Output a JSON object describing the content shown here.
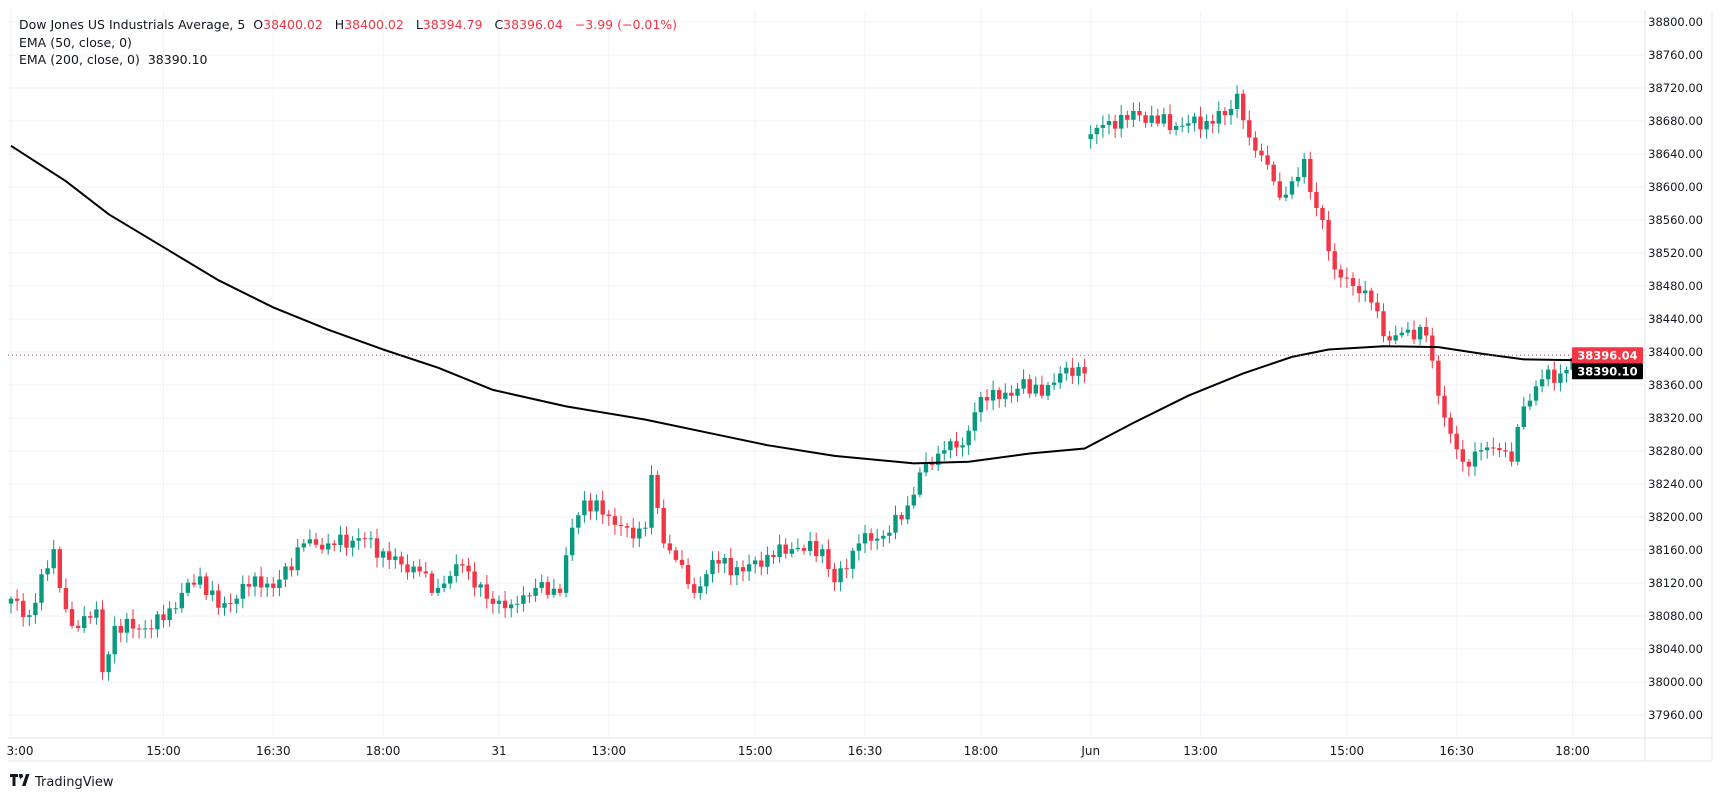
{
  "legend": {
    "symbol": "Dow Jones US Industrials Average, 5",
    "o_label": "O",
    "open": "38400.02",
    "h_label": "H",
    "high": "38400.02",
    "l_label": "L",
    "low": "38394.79",
    "c_label": "C",
    "close": "38396.04",
    "change": "−3.99 (−0.01%)",
    "ema50": "EMA (50, close, 0)",
    "ema200": "EMA (200, close, 0)",
    "ema200_value": "38390.10"
  },
  "brand": {
    "logo": "TV",
    "name": "TradingView"
  },
  "colors": {
    "up": "#089981",
    "down": "#f23645",
    "ema": "#000000",
    "grid": "#f0f3fa"
  },
  "chart_data": {
    "type": "candlestick",
    "title": "Dow Jones US Industrials Average, 5",
    "ylim": [
      37940,
      38820
    ],
    "yticks": [
      38800,
      38760,
      38720,
      38680,
      38640,
      38600,
      38560,
      38520,
      38480,
      38440,
      38400,
      38360,
      38320,
      38280,
      38240,
      38200,
      38160,
      38120,
      38080,
      38040,
      38000,
      37960
    ],
    "ytick_labels": [
      "38800.00",
      "38760.00",
      "38720.00",
      "38680.00",
      "38640.00",
      "38600.00",
      "38560.00",
      "38520.00",
      "38480.00",
      "38440.00",
      "38400.00",
      "38360.00",
      "38320.00",
      "38280.00",
      "38240.00",
      "38200.00",
      "38160.00",
      "38120.00",
      "38080.00",
      "38040.00",
      "38000.00",
      "37960.00"
    ],
    "xticks": [
      {
        "bar": 0,
        "label": "3:00"
      },
      {
        "bar": 25,
        "label": "15:00"
      },
      {
        "bar": 43,
        "label": "16:30"
      },
      {
        "bar": 61,
        "label": "18:00"
      },
      {
        "bar": 80,
        "label": "31"
      },
      {
        "bar": 98,
        "label": "13:00"
      },
      {
        "bar": 122,
        "label": "15:00"
      },
      {
        "bar": 140,
        "label": "16:30"
      },
      {
        "bar": 159,
        "label": "18:00"
      },
      {
        "bar": 177,
        "label": "Jun"
      },
      {
        "bar": 195,
        "label": "13:00"
      },
      {
        "bar": 219,
        "label": "15:00"
      },
      {
        "bar": 237,
        "label": "16:30"
      },
      {
        "bar": 256,
        "label": "18:00"
      }
    ],
    "n_bars": 258,
    "session_gap_bars": [
      177
    ],
    "close_waypoints": [
      [
        0,
        38101
      ],
      [
        3,
        38081
      ],
      [
        7,
        38161
      ],
      [
        8,
        38114
      ],
      [
        10,
        38068
      ],
      [
        14,
        38088
      ],
      [
        15,
        38012
      ],
      [
        17,
        38068
      ],
      [
        22,
        38065
      ],
      [
        25,
        38075
      ],
      [
        28,
        38108
      ],
      [
        31,
        38128
      ],
      [
        34,
        38090
      ],
      [
        37,
        38101
      ],
      [
        40,
        38128
      ],
      [
        43,
        38114
      ],
      [
        48,
        38168
      ],
      [
        52,
        38168
      ],
      [
        58,
        38174
      ],
      [
        62,
        38148
      ],
      [
        67,
        38134
      ],
      [
        69,
        38108
      ],
      [
        74,
        38141
      ],
      [
        78,
        38101
      ],
      [
        82,
        38094
      ],
      [
        86,
        38114
      ],
      [
        90,
        38108
      ],
      [
        92,
        38187
      ],
      [
        94,
        38220
      ],
      [
        98,
        38201
      ],
      [
        101,
        38187
      ],
      [
        102,
        38174
      ],
      [
        104,
        38187
      ],
      [
        105,
        38251
      ],
      [
        107,
        38168
      ],
      [
        109,
        38148
      ],
      [
        112,
        38108
      ],
      [
        115,
        38148
      ],
      [
        120,
        38134
      ],
      [
        124,
        38154
      ],
      [
        128,
        38161
      ],
      [
        133,
        38161
      ],
      [
        135,
        38121
      ],
      [
        139,
        38168
      ],
      [
        144,
        38181
      ],
      [
        147,
        38214
      ],
      [
        149,
        38254
      ],
      [
        153,
        38281
      ],
      [
        156,
        38287
      ],
      [
        158,
        38327
      ],
      [
        161,
        38354
      ],
      [
        164,
        38347
      ],
      [
        166,
        38367
      ],
      [
        169,
        38347
      ],
      [
        172,
        38374
      ],
      [
        176,
        38374
      ],
      [
        177,
        38664
      ],
      [
        180,
        38680
      ],
      [
        185,
        38687
      ],
      [
        191,
        38674
      ],
      [
        196,
        38680
      ],
      [
        199,
        38687
      ],
      [
        201,
        38713
      ],
      [
        203,
        38660
      ],
      [
        206,
        38627
      ],
      [
        208,
        38587
      ],
      [
        210,
        38607
      ],
      [
        212,
        38634
      ],
      [
        213,
        38594
      ],
      [
        215,
        38560
      ],
      [
        217,
        38500
      ],
      [
        220,
        38480
      ],
      [
        223,
        38460
      ],
      [
        226,
        38414
      ],
      [
        229,
        38427
      ],
      [
        232,
        38420
      ],
      [
        234,
        38347
      ],
      [
        236,
        38301
      ],
      [
        238,
        38267
      ],
      [
        241,
        38281
      ],
      [
        244,
        38281
      ],
      [
        246,
        38267
      ],
      [
        248,
        38334
      ],
      [
        251,
        38367
      ],
      [
        254,
        38374
      ],
      [
        257,
        38396.04
      ]
    ],
    "series": [
      {
        "name": "EMA (200, close, 0)",
        "points": [
          [
            0,
            38650
          ],
          [
            9,
            38607
          ],
          [
            16,
            38567
          ],
          [
            25,
            38527
          ],
          [
            34,
            38487
          ],
          [
            43,
            38454
          ],
          [
            52,
            38427
          ],
          [
            61,
            38403
          ],
          [
            70,
            38381
          ],
          [
            79,
            38354
          ],
          [
            91,
            38334
          ],
          [
            104,
            38318
          ],
          [
            115,
            38301
          ],
          [
            124,
            38287
          ],
          [
            135,
            38274
          ],
          [
            148,
            38265
          ],
          [
            157,
            38267
          ],
          [
            167,
            38277
          ],
          [
            176,
            38283
          ],
          [
            184,
            38314
          ],
          [
            193,
            38347
          ],
          [
            202,
            38374
          ],
          [
            210,
            38394
          ],
          [
            216,
            38403
          ],
          [
            225,
            38407
          ],
          [
            234,
            38406
          ],
          [
            241,
            38398
          ],
          [
            248,
            38391
          ],
          [
            257,
            38390.1
          ]
        ]
      }
    ],
    "last_price": 38396.04,
    "last_price_label": "38396.04",
    "ema_last": 38390.1,
    "ema_last_label": "38390.10"
  }
}
